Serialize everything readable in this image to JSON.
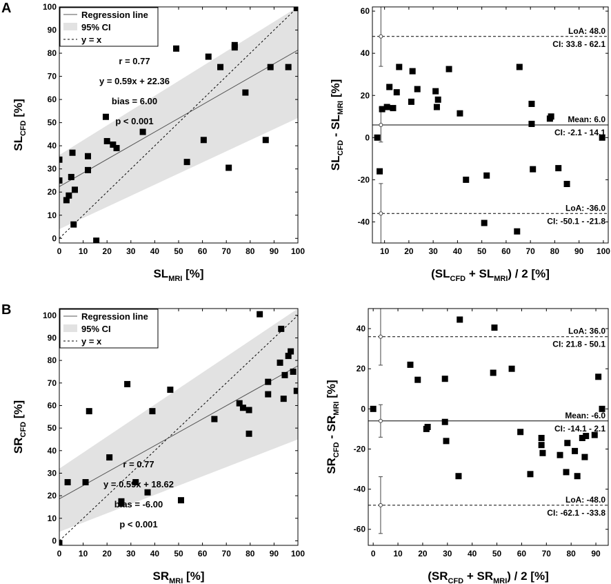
{
  "panel_labels": [
    "A",
    "B"
  ],
  "chart_data": [
    {
      "id": "A-left",
      "type": "scatter",
      "xlabel": "SL",
      "xlabel_sub": "MRI",
      "xlabel_unit": " [%]",
      "ylabel": "SL",
      "ylabel_sub": "CFD",
      "ylabel_unit": " [%]",
      "xlim": [
        0,
        100
      ],
      "ylim": [
        -2,
        100
      ],
      "xticks": [
        0,
        10,
        20,
        30,
        40,
        50,
        60,
        70,
        80,
        90,
        100
      ],
      "yticks": [
        0,
        10,
        20,
        30,
        40,
        50,
        60,
        70,
        80,
        90,
        100
      ],
      "regression": {
        "slope": 0.59,
        "intercept": 22.36
      },
      "ci_band": {
        "lower": [
          [
            0,
            4
          ],
          [
            100,
            52
          ]
        ],
        "upper": [
          [
            0,
            36
          ],
          [
            100,
            100
          ]
        ]
      },
      "legend": [
        "Regression line",
        "95% CI",
        "y = x"
      ],
      "annotations": [
        "r = 0.77",
        "y = 0.59x + 22.36",
        "bias = 6.00",
        "p < 0.001"
      ],
      "points": [
        [
          0,
          34
        ],
        [
          0,
          25
        ],
        [
          3,
          16.5
        ],
        [
          4,
          18.5
        ],
        [
          5,
          26.5
        ],
        [
          5.5,
          37
        ],
        [
          6,
          6
        ],
        [
          6.5,
          21
        ],
        [
          12,
          35.5
        ],
        [
          12,
          29.5
        ],
        [
          15.5,
          -1
        ],
        [
          19.5,
          52.5
        ],
        [
          20,
          42
        ],
        [
          22.5,
          40.5
        ],
        [
          24,
          39
        ],
        [
          35,
          46
        ],
        [
          49,
          82
        ],
        [
          53.5,
          33
        ],
        [
          60.5,
          42.5
        ],
        [
          62.5,
          78.5
        ],
        [
          67.5,
          74
        ],
        [
          71,
          30.5
        ],
        [
          73.5,
          83.5
        ],
        [
          73.5,
          82.5
        ],
        [
          78,
          63
        ],
        [
          86.5,
          42.5
        ],
        [
          88.5,
          74
        ],
        [
          96,
          74
        ],
        [
          99.5,
          99.5
        ]
      ]
    },
    {
      "id": "A-right",
      "type": "scatter",
      "xlabel": "(SL",
      "xlabel_sub1": "CFD",
      "xlabel_mid": " + SL",
      "xlabel_sub2": "MRI",
      "xlabel_end": ") / 2 [%]",
      "ylabel": "SL",
      "ylabel_sub1": "CFD",
      "ylabel_mid": " - SL",
      "ylabel_sub2": "MRI",
      "ylabel_unit": " [%]",
      "xlim": [
        5,
        102
      ],
      "ylim": [
        -50,
        62
      ],
      "xticks": [
        10,
        20,
        30,
        40,
        50,
        60,
        70,
        80,
        90,
        100
      ],
      "yticks": [
        -40,
        -20,
        0,
        20,
        40,
        60
      ],
      "mean": 6.0,
      "loa_upper": 48.0,
      "loa_lower": -36.0,
      "errorbars": [
        {
          "x": 8.5,
          "y": 48.0,
          "lo": 33.8,
          "hi": 62.1
        },
        {
          "x": 8.5,
          "y": 6.0,
          "lo": -2.1,
          "hi": 14.1
        },
        {
          "x": 8.5,
          "y": -36.0,
          "lo": -50.1,
          "hi": -21.8
        }
      ],
      "labels": {
        "loa_upper": "LoA: 48.0",
        "ci_upper": "CI: 33.8 - 62.1",
        "mean": "Mean: 6.0",
        "ci_mean": "CI: -2.1 - 14.1",
        "loa_lower": "LoA: -36.0",
        "ci_lower": "CI: -50.1 - -21.8"
      },
      "points": [
        [
          7,
          0
        ],
        [
          8,
          -16
        ],
        [
          9,
          13.5
        ],
        [
          11,
          14.5
        ],
        [
          12,
          24
        ],
        [
          13.5,
          14
        ],
        [
          15,
          21.5
        ],
        [
          16,
          33.5
        ],
        [
          21,
          17
        ],
        [
          21.5,
          31.5
        ],
        [
          23.5,
          23
        ],
        [
          31,
          22
        ],
        [
          31.5,
          14.5
        ],
        [
          32,
          18
        ],
        [
          36.5,
          32.5
        ],
        [
          41,
          11.5
        ],
        [
          43.5,
          -20
        ],
        [
          51,
          -40.5
        ],
        [
          52,
          -18
        ],
        [
          64.5,
          -44.5
        ],
        [
          65.5,
          33.5
        ],
        [
          70.5,
          16
        ],
        [
          70.5,
          6.5
        ],
        [
          71,
          -15
        ],
        [
          78,
          9
        ],
        [
          78.5,
          10
        ],
        [
          81.5,
          -14.5
        ],
        [
          85,
          -22
        ],
        [
          99.5,
          0
        ]
      ]
    },
    {
      "id": "B-left",
      "type": "scatter",
      "xlabel": "SR",
      "xlabel_sub": "MRI",
      "xlabel_unit": " [%]",
      "ylabel": "SR",
      "ylabel_sub": "CFD",
      "ylabel_unit": " [%]",
      "xlim": [
        0,
        100
      ],
      "ylim": [
        -2,
        103
      ],
      "xticks": [
        0,
        10,
        20,
        30,
        40,
        50,
        60,
        70,
        80,
        90,
        100
      ],
      "yticks": [
        0,
        10,
        20,
        30,
        40,
        50,
        60,
        70,
        80,
        90,
        100
      ],
      "regression": {
        "slope": 0.59,
        "intercept": 18.62
      },
      "ci_band": {
        "lower": [
          [
            0,
            4
          ],
          [
            100,
            45
          ]
        ],
        "upper": [
          [
            0,
            32
          ],
          [
            100,
            103
          ]
        ]
      },
      "legend": [
        "Regression line",
        "95% CI",
        "y = x"
      ],
      "annotations": [
        "r = 0.77",
        "y = 0.59x + 18.62",
        "bias = -6.00",
        "p < 0.001"
      ],
      "points": [
        [
          0,
          -1
        ],
        [
          3.5,
          26
        ],
        [
          11,
          26
        ],
        [
          12.5,
          57.5
        ],
        [
          21,
          37
        ],
        [
          26,
          17.5
        ],
        [
          26,
          16.5
        ],
        [
          28.5,
          69.5
        ],
        [
          32,
          26
        ],
        [
          37,
          21.5
        ],
        [
          39,
          57.5
        ],
        [
          46.5,
          67
        ],
        [
          51,
          18
        ],
        [
          65,
          54
        ],
        [
          75.5,
          61
        ],
        [
          77,
          59
        ],
        [
          79.5,
          58
        ],
        [
          79.5,
          47.5
        ],
        [
          84,
          100.5
        ],
        [
          87.5,
          70.5
        ],
        [
          87.5,
          65
        ],
        [
          92.5,
          79
        ],
        [
          93,
          94
        ],
        [
          94,
          63
        ],
        [
          94.5,
          73.5
        ],
        [
          96,
          82
        ],
        [
          97,
          84
        ],
        [
          98,
          75
        ],
        [
          99.5,
          66.5
        ]
      ]
    },
    {
      "id": "B-right",
      "type": "scatter",
      "xlabel": "(SR",
      "xlabel_sub1": "CFD",
      "xlabel_mid": " + SR",
      "xlabel_sub2": "MRI",
      "xlabel_end": ") / 2 [%]",
      "ylabel": "SR",
      "ylabel_sub1": "CFD",
      "ylabel_mid": " - SR",
      "ylabel_sub2": "MRI",
      "ylabel_unit": " [%]",
      "xlim": [
        -2,
        95
      ],
      "ylim": [
        -68,
        50
      ],
      "xticks": [
        0,
        10,
        20,
        30,
        40,
        50,
        60,
        70,
        80,
        90
      ],
      "yticks": [
        -60,
        -40,
        -20,
        0,
        20,
        40
      ],
      "mean": -6.0,
      "loa_upper": 36.0,
      "loa_lower": -48.0,
      "errorbars": [
        {
          "x": 3,
          "y": 36.0,
          "lo": 21.8,
          "hi": 50.1
        },
        {
          "x": 3,
          "y": -6.0,
          "lo": -14.1,
          "hi": 2.1
        },
        {
          "x": 3,
          "y": -48.0,
          "lo": -62.1,
          "hi": -33.8
        }
      ],
      "labels": {
        "loa_upper": "LoA: 36.0",
        "ci_upper": "CI: 21.8 - 50.1",
        "mean": "Mean: -6.0",
        "ci_mean": "CI: -14.1 - 2.1",
        "loa_lower": "LoA: -48.0",
        "ci_lower": "CI: -62.1 - -33.8"
      },
      "points": [
        [
          0,
          0
        ],
        [
          15,
          22
        ],
        [
          18,
          14.5
        ],
        [
          21.5,
          -10
        ],
        [
          22,
          -9
        ],
        [
          29,
          15
        ],
        [
          29,
          -6.5
        ],
        [
          29.5,
          -16
        ],
        [
          34.5,
          -33.5
        ],
        [
          35,
          44.5
        ],
        [
          48.5,
          18
        ],
        [
          49,
          40.5
        ],
        [
          56,
          20
        ],
        [
          59.5,
          -11.5
        ],
        [
          63.5,
          -32.5
        ],
        [
          68,
          -14.5
        ],
        [
          68,
          -18
        ],
        [
          68.5,
          -22
        ],
        [
          75.5,
          -23
        ],
        [
          78,
          -31.5
        ],
        [
          78.5,
          -17
        ],
        [
          81.5,
          -21
        ],
        [
          82.5,
          -33.5
        ],
        [
          84.5,
          -14.5
        ],
        [
          85.5,
          -24
        ],
        [
          86,
          -13.5
        ],
        [
          89.5,
          -13
        ],
        [
          91,
          16
        ],
        [
          92.5,
          0
        ]
      ]
    }
  ]
}
